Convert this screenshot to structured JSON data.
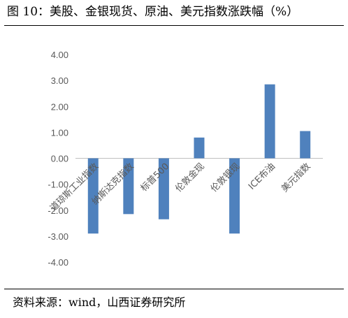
{
  "header": {
    "title": "图 10：美股、金银现货、原油、美元指数涨跌幅（%）"
  },
  "footer": {
    "source": "资料来源：wind，山西证券研究所"
  },
  "chart_data": {
    "type": "bar",
    "title": "",
    "xlabel": "",
    "ylabel": "",
    "categories": [
      "道琼斯工业指数",
      "纳斯达克指数",
      "标普500",
      "伦敦金现",
      "伦敦银现",
      "ICE布油",
      "美元指数"
    ],
    "values": [
      -2.9,
      -2.15,
      -2.35,
      0.8,
      -2.9,
      2.85,
      1.05
    ],
    "ylim": [
      -4,
      4
    ],
    "yticks": [
      "4.00",
      "3.00",
      "2.00",
      "1.00",
      "0.00",
      "-1.00",
      "-2.00",
      "-3.00",
      "-4.00"
    ],
    "bar_color": "#4f81bd",
    "grid": false,
    "legend": "none"
  }
}
